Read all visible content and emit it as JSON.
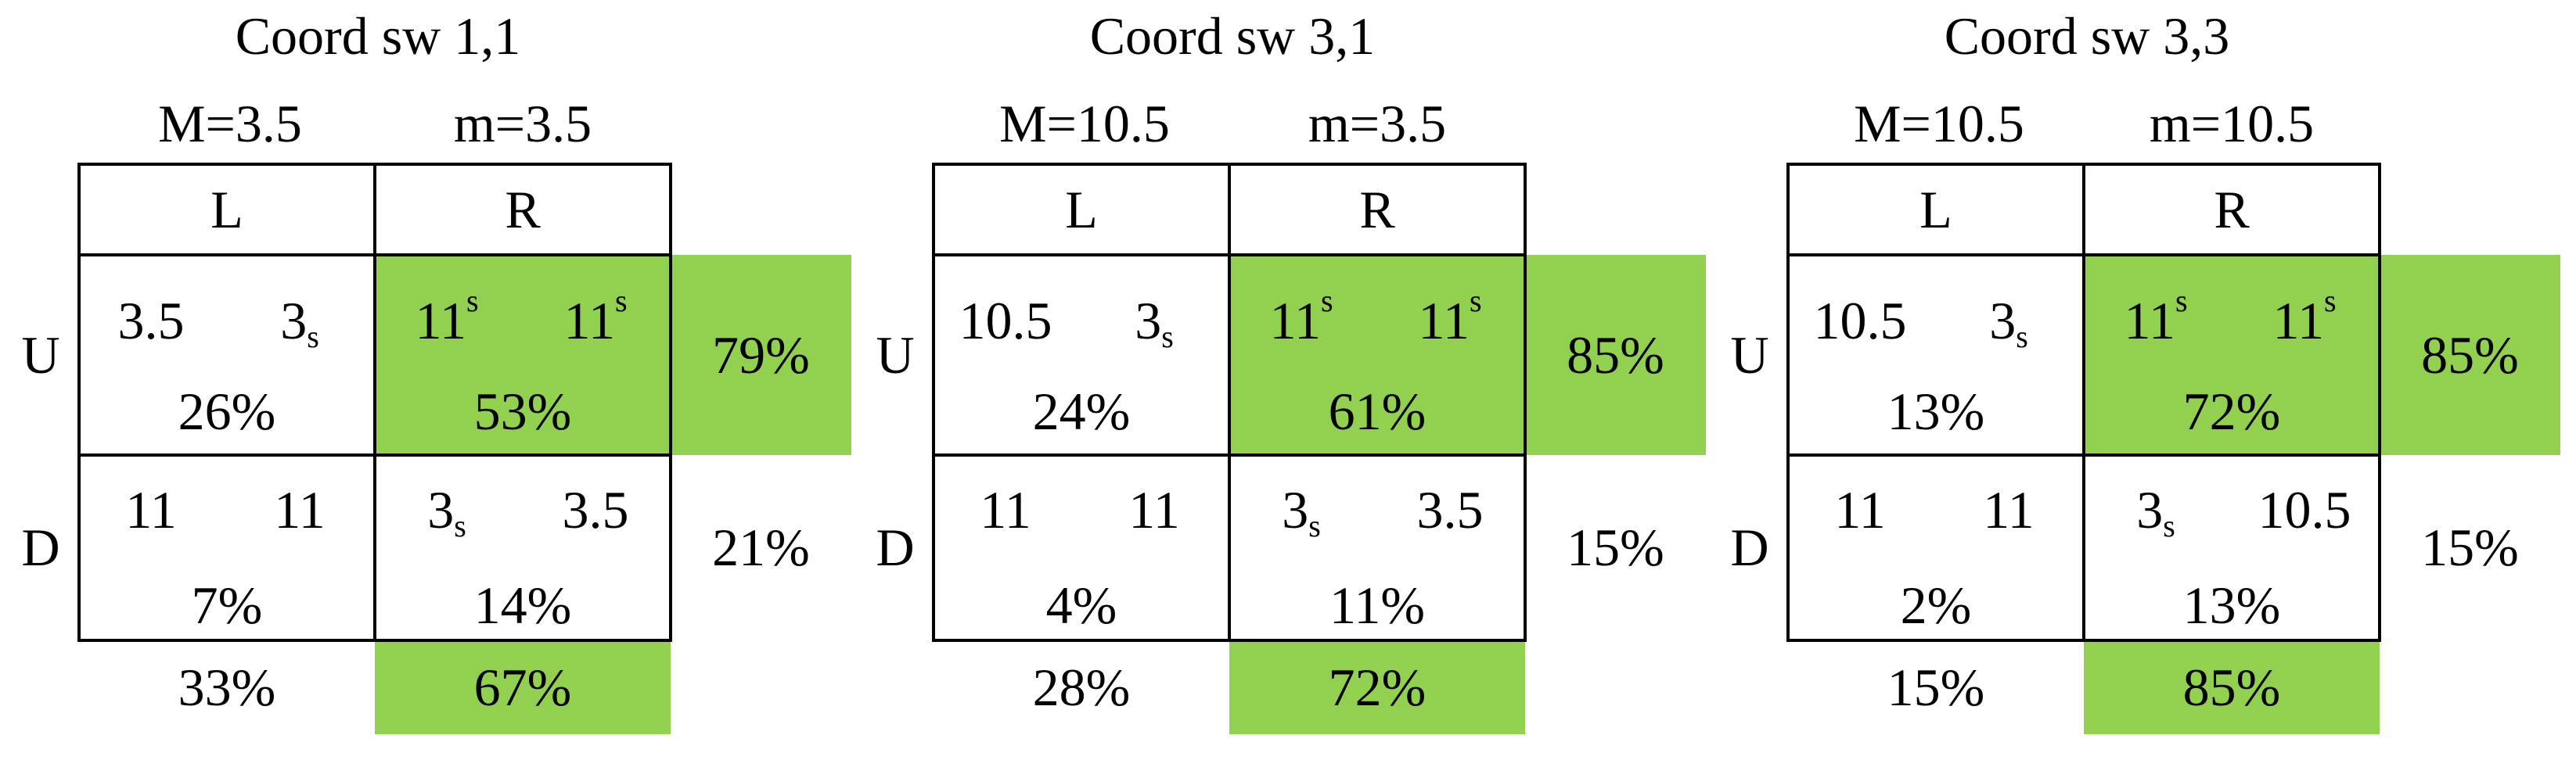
{
  "highlight_color": "#92d050",
  "panels": [
    {
      "title": "Coord sw 1,1",
      "M": "M=3.5",
      "m": "m=3.5",
      "columns": [
        "L",
        "R"
      ],
      "rows": [
        "U",
        "D"
      ],
      "cells": [
        [
          {
            "left": {
              "text": "3.5"
            },
            "right": {
              "text": "3",
              "sub": "s"
            },
            "pct": "26%"
          },
          {
            "left": {
              "text": "11",
              "sup": "s"
            },
            "right": {
              "text": "11",
              "sup": "s"
            },
            "pct": "53%",
            "highlight": true
          }
        ],
        [
          {
            "left": {
              "text": "11"
            },
            "right": {
              "text": "11"
            },
            "pct": "7%"
          },
          {
            "left": {
              "text": "3",
              "sub": "s"
            },
            "right": {
              "text": "3.5"
            },
            "pct": "14%"
          }
        ]
      ],
      "row_marginals": [
        {
          "text": "79%",
          "highlight": true
        },
        {
          "text": "21%"
        }
      ],
      "col_marginals": [
        {
          "text": "33%"
        },
        {
          "text": "67%",
          "highlight": true
        }
      ]
    },
    {
      "title": "Coord sw 3,1",
      "M": "M=10.5",
      "m": "m=3.5",
      "columns": [
        "L",
        "R"
      ],
      "rows": [
        "U",
        "D"
      ],
      "cells": [
        [
          {
            "left": {
              "text": "10.5"
            },
            "right": {
              "text": "3",
              "sub": "s"
            },
            "pct": "24%"
          },
          {
            "left": {
              "text": "11",
              "sup": "s"
            },
            "right": {
              "text": "11",
              "sup": "s"
            },
            "pct": "61%",
            "highlight": true
          }
        ],
        [
          {
            "left": {
              "text": "11"
            },
            "right": {
              "text": "11"
            },
            "pct": "4%"
          },
          {
            "left": {
              "text": "3",
              "sub": "s"
            },
            "right": {
              "text": "3.5"
            },
            "pct": "11%"
          }
        ]
      ],
      "row_marginals": [
        {
          "text": "85%",
          "highlight": true
        },
        {
          "text": "15%"
        }
      ],
      "col_marginals": [
        {
          "text": "28%"
        },
        {
          "text": "72%",
          "highlight": true
        }
      ]
    },
    {
      "title": "Coord sw 3,3",
      "M": "M=10.5",
      "m": "m=10.5",
      "columns": [
        "L",
        "R"
      ],
      "rows": [
        "U",
        "D"
      ],
      "cells": [
        [
          {
            "left": {
              "text": "10.5"
            },
            "right": {
              "text": "3",
              "sub": "s"
            },
            "pct": "13%"
          },
          {
            "left": {
              "text": "11",
              "sup": "s"
            },
            "right": {
              "text": "11",
              "sup": "s"
            },
            "pct": "72%",
            "highlight": true
          }
        ],
        [
          {
            "left": {
              "text": "11"
            },
            "right": {
              "text": "11"
            },
            "pct": "2%"
          },
          {
            "left": {
              "text": "3",
              "sub": "s"
            },
            "right": {
              "text": "10.5"
            },
            "pct": "13%"
          }
        ]
      ],
      "row_marginals": [
        {
          "text": "85%",
          "highlight": true
        },
        {
          "text": "15%"
        }
      ],
      "col_marginals": [
        {
          "text": "15%"
        },
        {
          "text": "85%",
          "highlight": true
        }
      ]
    }
  ]
}
